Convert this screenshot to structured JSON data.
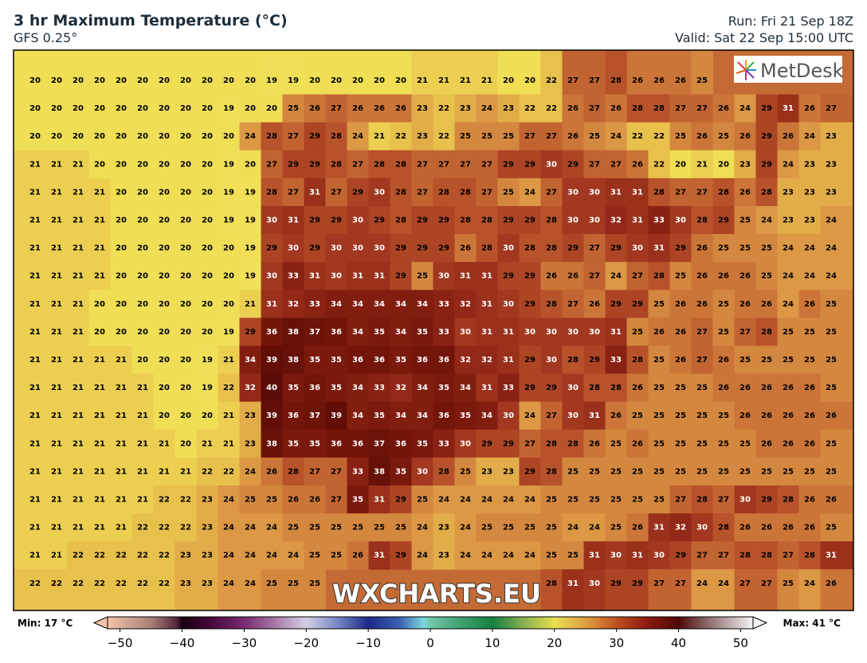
{
  "header": {
    "title": "3 hr Maximum Temperature (°C)",
    "model": "GFS 0.25°",
    "run": "Run: Fri 21 Sep 18Z",
    "valid": "Valid: Sat 22 Sep 15:00 UTC"
  },
  "logo": "MetDesk",
  "watermark": "WXCHARTS.EU",
  "colorscale": [
    [
      17,
      "#f2e35a"
    ],
    [
      20,
      "#f0de55"
    ],
    [
      22,
      "#e8c04c"
    ],
    [
      24,
      "#dc9845"
    ],
    [
      26,
      "#cc7538"
    ],
    [
      28,
      "#b8522a"
    ],
    [
      30,
      "#a2381f"
    ],
    [
      33,
      "#8a2214"
    ],
    [
      36,
      "#731509"
    ],
    [
      40,
      "#5c0c06"
    ]
  ],
  "grid_values": [
    [
      20,
      20,
      20,
      20,
      20,
      20,
      20,
      20,
      20,
      20,
      20,
      19,
      19,
      20,
      20,
      20,
      20,
      20,
      21,
      21,
      21,
      21,
      20,
      20,
      22,
      27,
      27,
      28,
      26,
      26,
      26,
      25,
      null,
      null,
      null,
      null,
      null,
      null
    ],
    [
      20,
      20,
      20,
      20,
      20,
      20,
      20,
      20,
      20,
      19,
      20,
      20,
      25,
      26,
      27,
      26,
      26,
      26,
      23,
      22,
      23,
      24,
      23,
      22,
      22,
      26,
      27,
      26,
      28,
      28,
      27,
      27,
      26,
      24,
      29,
      31,
      26,
      27
    ],
    [
      20,
      20,
      20,
      20,
      20,
      20,
      20,
      20,
      20,
      20,
      24,
      28,
      27,
      29,
      28,
      24,
      21,
      22,
      23,
      22,
      25,
      25,
      25,
      27,
      27,
      26,
      25,
      24,
      22,
      22,
      25,
      26,
      25,
      26,
      29,
      26,
      24,
      23
    ],
    [
      21,
      21,
      21,
      20,
      20,
      20,
      20,
      20,
      20,
      19,
      20,
      27,
      29,
      29,
      28,
      27,
      28,
      28,
      27,
      27,
      27,
      27,
      29,
      29,
      30,
      29,
      27,
      27,
      26,
      22,
      20,
      21,
      20,
      23,
      29,
      24,
      23,
      23
    ],
    [
      21,
      21,
      21,
      21,
      20,
      20,
      20,
      20,
      20,
      19,
      19,
      28,
      27,
      31,
      27,
      29,
      30,
      28,
      27,
      28,
      28,
      27,
      25,
      24,
      27,
      30,
      30,
      31,
      31,
      28,
      27,
      27,
      28,
      26,
      28,
      23,
      23,
      23
    ],
    [
      21,
      21,
      21,
      21,
      20,
      20,
      20,
      20,
      20,
      19,
      19,
      30,
      31,
      29,
      29,
      30,
      29,
      28,
      29,
      29,
      28,
      28,
      29,
      29,
      28,
      30,
      30,
      32,
      31,
      33,
      30,
      28,
      29,
      25,
      24,
      23,
      23,
      24
    ],
    [
      21,
      21,
      21,
      21,
      20,
      20,
      20,
      20,
      20,
      20,
      19,
      29,
      30,
      29,
      30,
      30,
      30,
      29,
      29,
      29,
      26,
      28,
      30,
      28,
      28,
      29,
      27,
      29,
      30,
      31,
      29,
      26,
      25,
      25,
      25,
      24,
      24,
      24
    ],
    [
      21,
      21,
      21,
      21,
      20,
      20,
      20,
      20,
      20,
      20,
      19,
      30,
      33,
      31,
      30,
      31,
      31,
      29,
      25,
      30,
      31,
      31,
      29,
      29,
      26,
      26,
      27,
      24,
      27,
      28,
      25,
      26,
      26,
      26,
      25,
      24,
      24,
      24
    ],
    [
      21,
      21,
      21,
      20,
      20,
      20,
      20,
      20,
      20,
      20,
      21,
      31,
      32,
      33,
      34,
      34,
      34,
      34,
      34,
      33,
      32,
      31,
      30,
      29,
      28,
      27,
      26,
      29,
      29,
      25,
      26,
      26,
      25,
      26,
      26,
      24,
      26,
      25
    ],
    [
      21,
      21,
      21,
      20,
      20,
      20,
      20,
      20,
      20,
      19,
      29,
      36,
      38,
      37,
      36,
      34,
      35,
      34,
      35,
      33,
      30,
      31,
      31,
      30,
      30,
      30,
      30,
      31,
      25,
      26,
      26,
      27,
      25,
      27,
      28,
      25,
      25,
      25
    ],
    [
      21,
      21,
      21,
      21,
      21,
      20,
      20,
      20,
      19,
      21,
      34,
      39,
      38,
      35,
      35,
      36,
      36,
      35,
      36,
      36,
      32,
      32,
      31,
      29,
      30,
      28,
      29,
      33,
      28,
      25,
      26,
      27,
      26,
      25,
      25,
      25,
      25,
      25
    ],
    [
      21,
      21,
      21,
      21,
      21,
      21,
      20,
      20,
      19,
      22,
      32,
      40,
      35,
      36,
      35,
      34,
      33,
      32,
      34,
      35,
      34,
      31,
      33,
      29,
      29,
      30,
      28,
      28,
      26,
      25,
      25,
      25,
      26,
      26,
      26,
      26,
      26,
      25
    ],
    [
      21,
      21,
      21,
      21,
      21,
      21,
      20,
      20,
      20,
      21,
      23,
      39,
      36,
      37,
      39,
      34,
      35,
      34,
      34,
      36,
      35,
      34,
      30,
      24,
      27,
      30,
      31,
      26,
      25,
      25,
      25,
      25,
      25,
      26,
      26,
      26,
      26,
      26
    ],
    [
      21,
      21,
      21,
      21,
      21,
      21,
      21,
      20,
      21,
      21,
      23,
      38,
      35,
      35,
      36,
      36,
      37,
      36,
      35,
      33,
      30,
      29,
      29,
      27,
      28,
      28,
      26,
      25,
      26,
      25,
      25,
      25,
      25,
      25,
      26,
      26,
      26,
      25
    ],
    [
      21,
      21,
      21,
      21,
      21,
      21,
      21,
      21,
      22,
      22,
      24,
      26,
      28,
      27,
      27,
      33,
      38,
      35,
      30,
      28,
      25,
      23,
      23,
      29,
      28,
      25,
      25,
      25,
      25,
      25,
      25,
      25,
      25,
      25,
      25,
      25,
      25,
      25
    ],
    [
      21,
      21,
      21,
      21,
      21,
      21,
      22,
      22,
      23,
      24,
      25,
      25,
      26,
      26,
      27,
      35,
      31,
      29,
      25,
      24,
      24,
      24,
      24,
      24,
      25,
      25,
      25,
      25,
      25,
      25,
      27,
      28,
      27,
      30,
      29,
      28,
      26,
      26
    ],
    [
      21,
      21,
      21,
      21,
      21,
      22,
      22,
      22,
      23,
      24,
      24,
      24,
      25,
      25,
      25,
      25,
      25,
      25,
      24,
      23,
      24,
      25,
      25,
      25,
      25,
      24,
      24,
      25,
      26,
      31,
      32,
      30,
      28,
      26,
      26,
      26,
      26,
      25
    ],
    [
      21,
      21,
      22,
      22,
      22,
      22,
      22,
      23,
      23,
      24,
      24,
      24,
      24,
      25,
      25,
      26,
      31,
      29,
      24,
      23,
      24,
      24,
      24,
      24,
      25,
      25,
      31,
      30,
      31,
      30,
      29,
      27,
      27,
      28,
      28,
      27,
      28,
      31
    ],
    [
      22,
      22,
      22,
      22,
      22,
      22,
      22,
      23,
      23,
      24,
      24,
      25,
      25,
      25,
      null,
      null,
      null,
      null,
      null,
      null,
      null,
      null,
      null,
      null,
      28,
      31,
      30,
      29,
      29,
      27,
      27,
      24,
      24,
      27,
      27,
      25,
      24,
      26
    ]
  ],
  "colorbar": {
    "min_label": "Min: 17 °C",
    "max_label": "Max: 41 °C",
    "lim": [
      -52,
      52
    ],
    "ticks": [
      {
        "value": -50,
        "label": "−50"
      },
      {
        "value": -40,
        "label": "−40"
      },
      {
        "value": -30,
        "label": "−30"
      },
      {
        "value": -20,
        "label": "−20"
      },
      {
        "value": -10,
        "label": "−10"
      },
      0,
      10,
      20,
      30,
      40,
      50
    ],
    "colors": [
      [
        -52,
        "#f6c4a8"
      ],
      [
        -45,
        "#a88078"
      ],
      [
        -41,
        "#5a2a40"
      ],
      [
        -40,
        "#1a0010"
      ],
      [
        -35,
        "#4a0a40"
      ],
      [
        -30,
        "#7a2a70"
      ],
      [
        -25,
        "#a878a8"
      ],
      [
        -20,
        "#d4d0e4"
      ],
      [
        -15,
        "#7888c4"
      ],
      [
        -10,
        "#1c2a88"
      ],
      [
        -5,
        "#3c60b0"
      ],
      [
        -1,
        "#7cd8e0"
      ],
      [
        0,
        "#70c8a8"
      ],
      [
        5,
        "#40a070"
      ],
      [
        10,
        "#148040"
      ],
      [
        15,
        "#88b050"
      ],
      [
        20,
        "#e8df50"
      ],
      [
        25,
        "#e0a040"
      ],
      [
        30,
        "#c05020"
      ],
      [
        35,
        "#8c1a10"
      ],
      [
        40,
        "#500808"
      ],
      [
        45,
        "#907070"
      ],
      [
        52,
        "#f4f4f4"
      ]
    ]
  }
}
